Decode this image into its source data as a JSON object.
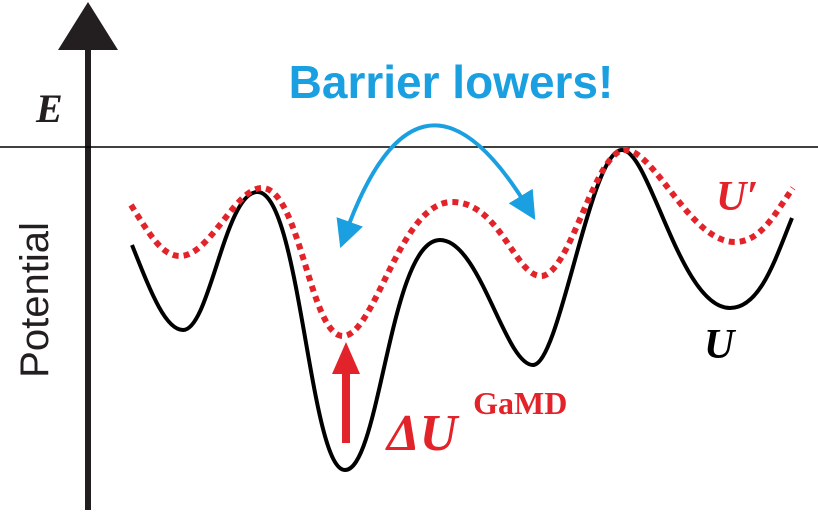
{
  "axis": {
    "energy_label": "E",
    "vertical_label": "Potential"
  },
  "annotation": {
    "text": "Barrier lowers!"
  },
  "curves": {
    "original_label": "U",
    "boosted_label": "U′"
  },
  "boost": {
    "symbol": "ΔU",
    "superscript": "GaMD"
  },
  "colors": {
    "axis": "#231f20",
    "original_curve": "#000000",
    "boosted_curve": "#e3232a",
    "annotation": "#1aa0e0",
    "boost_arrow": "#e3232a"
  }
}
